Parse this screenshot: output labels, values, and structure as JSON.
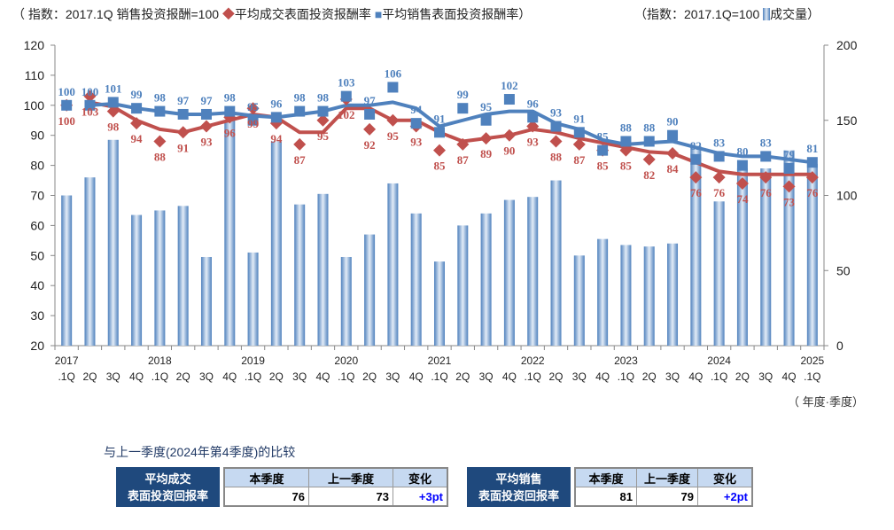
{
  "legend": {
    "left_index": "（ 指数：2017.1Q 销售投资报酬=100",
    "series1": "平均成交表面投资报酬率",
    "series2": "平均销售表面投资报酬率）",
    "right_index": "（指数：2017.1Q=100",
    "series3": "成交量）"
  },
  "chart_data": {
    "type": "bar+line",
    "categories": [
      "2017 .1Q",
      "2Q",
      "3Q",
      "4Q",
      "2018 .1Q",
      "2Q",
      "3Q",
      "4Q",
      "2019 .1Q",
      "2Q",
      "3Q",
      "4Q",
      "2020 .1Q",
      "2Q",
      "3Q",
      "4Q",
      "2021 .1Q",
      "2Q",
      "3Q",
      "4Q",
      "2022 .1Q",
      "2Q",
      "3Q",
      "4Q",
      "2023 .1Q",
      "2Q",
      "3Q",
      "4Q",
      "2024 .1Q",
      "2Q",
      "3Q",
      "4Q",
      "2025 .1Q"
    ],
    "year_labels": [
      "2017",
      "",
      "",
      "",
      "2018",
      "",
      "",
      "",
      "2019",
      "",
      "",
      "",
      "2020",
      "",
      "",
      "",
      "2021",
      "",
      "",
      "",
      "2022",
      "",
      "",
      "",
      "2023",
      "",
      "",
      "",
      "2024",
      "",
      "",
      "",
      "2025"
    ],
    "quarter_labels": [
      ".1Q",
      "2Q",
      "3Q",
      "4Q",
      ".1Q",
      "2Q",
      "3Q",
      "4Q",
      ".1Q",
      "2Q",
      "3Q",
      "4Q",
      ".1Q",
      "2Q",
      "3Q",
      "4Q",
      ".1Q",
      "2Q",
      "3Q",
      "4Q",
      ".1Q",
      "2Q",
      "3Q",
      "4Q",
      ".1Q",
      "2Q",
      "3Q",
      "4Q",
      ".1Q",
      "2Q",
      "3Q",
      "4Q",
      ".1Q"
    ],
    "series": [
      {
        "name": "平均成交表面投资报酬率",
        "type": "scatter",
        "color": "#c0504d",
        "values": [
          100,
          103,
          98,
          94,
          88,
          91,
          93,
          96,
          99,
          94,
          87,
          95,
          102,
          92,
          95,
          93,
          85,
          87,
          89,
          90,
          93,
          88,
          87,
          85,
          85,
          82,
          84,
          76,
          76,
          74,
          76,
          73,
          76
        ],
        "trend": [
          null,
          101,
          99.5,
          95,
          92,
          91,
          93,
          95,
          97,
          96,
          91,
          91,
          99,
          99,
          95,
          95,
          91,
          88,
          89,
          90,
          92,
          91,
          89,
          87.5,
          86,
          84.5,
          84,
          81,
          78,
          77,
          77,
          77,
          77
        ]
      },
      {
        "name": "平均销售表面投资报酬率",
        "type": "scatter",
        "color": "#4f81bd",
        "values": [
          100,
          100,
          101,
          99,
          98,
          97,
          97,
          98,
          95,
          96,
          98,
          98,
          103,
          97,
          106,
          94,
          91,
          99,
          95,
          102,
          96,
          93,
          91,
          85,
          88,
          88,
          90,
          82,
          83,
          80,
          83,
          79,
          81
        ],
        "trend": [
          null,
          100,
          100.5,
          99,
          98,
          97,
          97,
          97.5,
          96.5,
          96,
          97,
          98,
          100,
          100,
          101,
          99,
          93,
          95,
          97,
          98,
          98,
          94,
          92,
          88.5,
          87,
          87.5,
          88,
          86,
          84,
          83,
          83,
          82,
          81
        ]
      },
      {
        "name": "成交量",
        "type": "bar",
        "axis": "right",
        "color": "#4f81bd",
        "values": [
          100,
          112,
          137,
          87,
          90,
          93,
          59,
          150,
          62,
          136,
          94,
          101,
          59,
          74,
          108,
          88,
          56,
          80,
          88,
          97,
          99,
          110,
          60,
          71,
          67,
          66,
          68,
          133,
          96,
          118,
          118,
          130,
          121
        ]
      }
    ],
    "ylim": [
      20,
      120
    ],
    "yticks": [
      20,
      30,
      40,
      50,
      60,
      70,
      80,
      90,
      100,
      110,
      120
    ],
    "y2lim": [
      0,
      200
    ],
    "y2ticks": [
      0,
      50,
      100,
      150,
      200
    ],
    "xlabel": "（ 年度·季度）"
  },
  "comparison": {
    "title": "与上一季度(2024年第4季度)的比较",
    "tables": [
      {
        "label1": "平均成交",
        "label2": "表面投资回报率",
        "h_current": "本季度",
        "h_prev": "上一季度",
        "h_change": "变化",
        "current": "76",
        "prev": "73",
        "change": "+3pt"
      },
      {
        "label1": "平均销售",
        "label2": "表面投资回报率",
        "h_current": "本季度",
        "h_prev": "上一季度",
        "h_change": "变化",
        "current": "81",
        "prev": "79",
        "change": "+2pt"
      }
    ]
  }
}
